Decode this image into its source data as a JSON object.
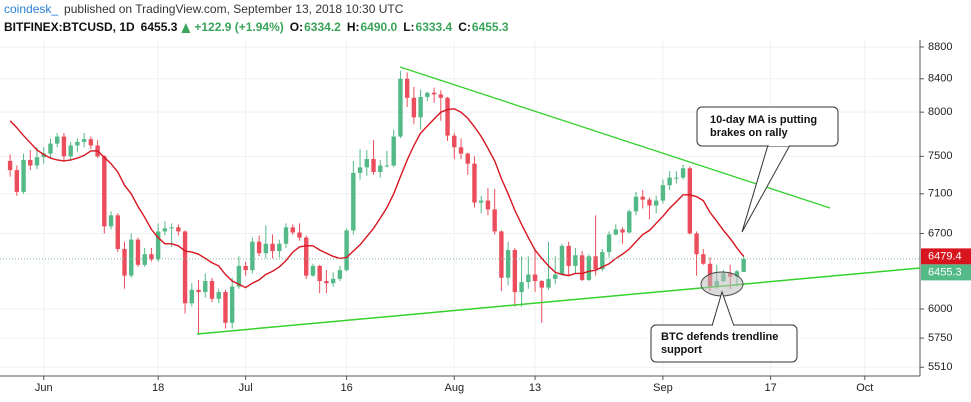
{
  "header": {
    "site": "coindesk_",
    "published": "published on TradingView.com, September 13, 2018 10:30 UTC",
    "symbol": "BITFINEX:BTCUSD, 1D",
    "change": "+122.9 (+1.94%)",
    "ohlc_labels": [
      "O:",
      "H:",
      "L:",
      "C:"
    ],
    "high_label": "6490.0"
  },
  "chart_data": {
    "type": "candlestick",
    "log": true,
    "grid": true,
    "up_color": "#53b987",
    "down_color": "#eb4d5c",
    "open": [
      7450,
      7350,
      7120,
      7460,
      7400,
      7490,
      7530,
      7640,
      7720,
      7500,
      7620,
      7660,
      7690,
      7620,
      7500,
      6770,
      6880,
      6550,
      6300,
      6640,
      6400,
      6500,
      6450,
      6720,
      6750,
      6760,
      6720,
      6050,
      6170,
      6150,
      6250,
      6090,
      6150,
      5880,
      6200,
      6390,
      6350,
      6620,
      6510,
      6600,
      6530,
      6600,
      6760,
      6710,
      6660,
      6300,
      6390,
      6250,
      6230,
      6270,
      6350,
      6730,
      7320,
      7380,
      7470,
      7330,
      7400,
      7400,
      7720,
      8400,
      8170,
      7940,
      8180,
      8230,
      8210,
      8170,
      7730,
      7600,
      7530,
      7420,
      7010,
      7030,
      6940,
      6720,
      6280,
      6540,
      6150,
      6240,
      6310,
      6250,
      6190,
      6270,
      6310,
      6580,
      6390,
      6490,
      6260,
      6480,
      6360,
      6520,
      6690,
      6740,
      6710,
      6920,
      7070,
      7040,
      6980,
      7030,
      7190,
      7270,
      7270,
      7370,
      6700,
      6500,
      6410,
      6200,
      6250,
      6320,
      6290,
      6334.2
    ],
    "high": [
      7520,
      7400,
      7530,
      7570,
      7600,
      7600,
      7700,
      7760,
      7760,
      7660,
      7700,
      7760,
      7720,
      7680,
      7510,
      6920,
      6900,
      6620,
      6700,
      6660,
      6560,
      6560,
      6800,
      6820,
      6800,
      6790,
      6730,
      6230,
      6260,
      6320,
      6280,
      6180,
      6170,
      6280,
      6480,
      6430,
      6660,
      6680,
      6780,
      6690,
      6640,
      6800,
      6790,
      6800,
      6680,
      6410,
      6400,
      6350,
      6330,
      6390,
      6750,
      7450,
      7580,
      7570,
      7680,
      7460,
      7560,
      7800,
      8500,
      8480,
      8300,
      8270,
      8240,
      8290,
      8260,
      8180,
      7760,
      7700,
      7540,
      7500,
      7080,
      7160,
      7150,
      6730,
      6620,
      6560,
      6480,
      6480,
      6540,
      6260,
      6620,
      6480,
      6600,
      6620,
      6560,
      6530,
      6500,
      6880,
      6550,
      6720,
      6790,
      6760,
      6940,
      7120,
      7140,
      7060,
      7080,
      7250,
      7340,
      7340,
      7410,
      7390,
      6720,
      6550,
      6470,
      6400,
      6350,
      6400,
      6350,
      6490
    ],
    "low": [
      7280,
      7080,
      7100,
      7350,
      7360,
      7420,
      7480,
      7600,
      7440,
      7450,
      7550,
      7600,
      7580,
      7480,
      6700,
      6740,
      6520,
      6180,
      6280,
      6380,
      6380,
      6430,
      6430,
      6680,
      6570,
      6680,
      5960,
      6020,
      5780,
      6100,
      6060,
      6050,
      5830,
      5830,
      6180,
      6300,
      6320,
      6480,
      6460,
      6460,
      6470,
      6560,
      6690,
      6630,
      6270,
      6290,
      6140,
      6140,
      6200,
      6250,
      6340,
      6690,
      7250,
      7290,
      7300,
      7270,
      7380,
      7380,
      7700,
      8060,
      7860,
      7800,
      8130,
      8110,
      7900,
      7670,
      7470,
      7470,
      7300,
      6960,
      6900,
      6880,
      6690,
      6160,
      6210,
      6020,
      6020,
      6180,
      6150,
      5880,
      6170,
      6220,
      6300,
      6300,
      6320,
      6250,
      6250,
      6300,
      6340,
      6470,
      6680,
      6600,
      6700,
      6880,
      6950,
      6840,
      6900,
      7000,
      7140,
      7210,
      7250,
      6690,
      6300,
      6400,
      6160,
      6180,
      6240,
      6180,
      6200,
      6333.4
    ],
    "close": [
      7350,
      7120,
      7460,
      7400,
      7490,
      7530,
      7640,
      7720,
      7500,
      7620,
      7660,
      7690,
      7620,
      7500,
      6770,
      6880,
      6550,
      6300,
      6640,
      6400,
      6500,
      6450,
      6720,
      6750,
      6760,
      6720,
      6050,
      6170,
      6150,
      6250,
      6090,
      6150,
      5880,
      6200,
      6390,
      6350,
      6620,
      6510,
      6600,
      6530,
      6600,
      6760,
      6710,
      6660,
      6300,
      6390,
      6250,
      6230,
      6270,
      6350,
      6730,
      7320,
      7380,
      7470,
      7330,
      7400,
      7400,
      7720,
      8400,
      8170,
      7940,
      8180,
      8230,
      8210,
      8170,
      7730,
      7600,
      7530,
      7420,
      7010,
      7030,
      6940,
      6720,
      6280,
      6540,
      6150,
      6240,
      6310,
      6250,
      6190,
      6270,
      6310,
      6580,
      6390,
      6490,
      6260,
      6480,
      6360,
      6520,
      6690,
      6740,
      6710,
      6920,
      7070,
      7040,
      6980,
      7030,
      7190,
      7270,
      7270,
      7370,
      6700,
      6500,
      6410,
      6200,
      6250,
      6320,
      6290,
      6340,
      6455.3
    ],
    "ma": {
      "color": "#d8141f",
      "values": [
        7900,
        7820,
        7730,
        7650,
        7570,
        7520,
        7480,
        7460,
        7450,
        7460,
        7480,
        7510,
        7560,
        7560,
        7490,
        7420,
        7330,
        7190,
        7100,
        6970,
        6860,
        6740,
        6660,
        6600,
        6600,
        6580,
        6530,
        6520,
        6500,
        6460,
        6420,
        6390,
        6310,
        6250,
        6220,
        6190,
        6230,
        6260,
        6310,
        6340,
        6380,
        6440,
        6520,
        6570,
        6580,
        6580,
        6540,
        6510,
        6480,
        6460,
        6470,
        6530,
        6590,
        6670,
        6750,
        6850,
        6960,
        7100,
        7280,
        7460,
        7620,
        7760,
        7840,
        7920,
        8000,
        8030,
        8040,
        8000,
        7930,
        7830,
        7720,
        7590,
        7450,
        7260,
        7100,
        6930,
        6790,
        6660,
        6540,
        6460,
        6390,
        6330,
        6310,
        6300,
        6320,
        6320,
        6340,
        6350,
        6380,
        6410,
        6460,
        6500,
        6550,
        6620,
        6690,
        6730,
        6800,
        6870,
        6950,
        7020,
        7090,
        7090,
        7070,
        7030,
        6910,
        6820,
        6730,
        6650,
        6560,
        6479.4
      ]
    },
    "ylim": [
      5440,
      8890
    ],
    "yticks": [
      8800,
      8400,
      8000,
      7500,
      7100,
      6700,
      6000,
      5750,
      5510
    ],
    "xlim": [
      -1.5,
      135.2
    ],
    "xticks": [
      {
        "value": 5,
        "label": "Jun"
      },
      {
        "value": 22,
        "label": "18"
      },
      {
        "value": 35,
        "label": "Jul"
      },
      {
        "value": 50,
        "label": "16"
      },
      {
        "value": 66,
        "label": "Aug"
      },
      {
        "value": 78,
        "label": "13"
      },
      {
        "value": 97,
        "label": "Sep"
      },
      {
        "value": 113,
        "label": "17"
      },
      {
        "value": 127,
        "label": "Oct"
      }
    ],
    "annotations": [
      {
        "lines": [
          "10-day MA is putting",
          "brakes on rally"
        ]
      },
      {
        "lines": [
          "BTC defends trendline",
          "support"
        ]
      }
    ]
  }
}
